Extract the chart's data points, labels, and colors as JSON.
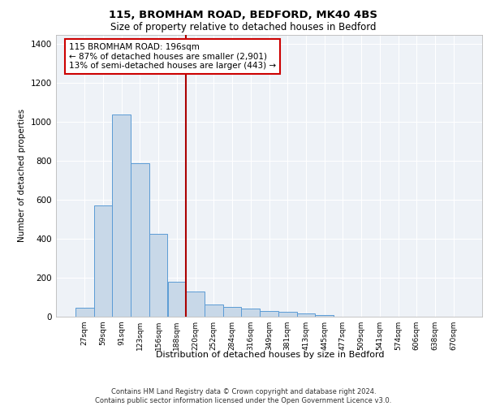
{
  "title1": "115, BROMHAM ROAD, BEDFORD, MK40 4BS",
  "title2": "Size of property relative to detached houses in Bedford",
  "xlabel": "Distribution of detached houses by size in Bedford",
  "ylabel": "Number of detached properties",
  "categories": [
    "27sqm",
    "59sqm",
    "91sqm",
    "123sqm",
    "156sqm",
    "188sqm",
    "220sqm",
    "252sqm",
    "284sqm",
    "316sqm",
    "349sqm",
    "381sqm",
    "413sqm",
    "445sqm",
    "477sqm",
    "509sqm",
    "541sqm",
    "574sqm",
    "606sqm",
    "638sqm",
    "670sqm"
  ],
  "values": [
    47,
    572,
    1040,
    790,
    425,
    180,
    130,
    62,
    50,
    42,
    28,
    27,
    18,
    10,
    0,
    0,
    0,
    0,
    0,
    0,
    0
  ],
  "bar_color": "#c8d8e8",
  "bar_edge_color": "#5b9bd5",
  "vline_x": 5.5,
  "vline_color": "#aa0000",
  "annotation_text": "115 BROMHAM ROAD: 196sqm\n← 87% of detached houses are smaller (2,901)\n13% of semi-detached houses are larger (443) →",
  "annotation_box_color": "#ffffff",
  "annotation_box_edge": "#cc0000",
  "ylim": [
    0,
    1450
  ],
  "yticks": [
    0,
    200,
    400,
    600,
    800,
    1000,
    1200,
    1400
  ],
  "background_color": "#eef2f7",
  "grid_color": "#ffffff",
  "footer_line1": "Contains HM Land Registry data © Crown copyright and database right 2024.",
  "footer_line2": "Contains public sector information licensed under the Open Government Licence v3.0."
}
